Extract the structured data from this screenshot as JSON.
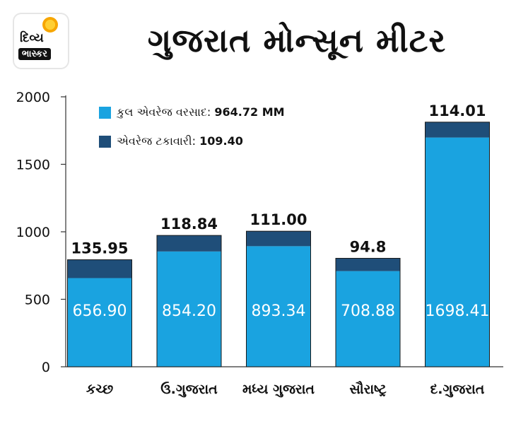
{
  "logo": {
    "line1": "દિવ્ય",
    "line2": "ભાસ્કર"
  },
  "title": "ગુજરાત મોન્સૂન મીટર",
  "chart_data": {
    "type": "bar",
    "stacked": true,
    "categories": [
      "કચ્છ",
      "ઉ.ગુજરાત",
      "મધ્ય ગુજરાત",
      "સૌરાષ્ટ્ર",
      "દ.ગુજરાત"
    ],
    "ylim": [
      0,
      2000
    ],
    "yticks": [
      "0",
      "500",
      "1000",
      "1500",
      "2000"
    ],
    "series": [
      {
        "name": "કુલ એવરેજ વરસાદ:",
        "legend_value": "964.72 MM",
        "color": "#1aa3e0",
        "values": [
          656.9,
          854.2,
          893.34,
          708.88,
          1698.41
        ],
        "labels": [
          "656.90",
          "854.20",
          "893.34",
          "708.88",
          "1698.41"
        ]
      },
      {
        "name": "એવરેજ ટકાવારી:",
        "legend_value": "109.40",
        "color": "#1f4e79",
        "values": [
          135.95,
          118.84,
          111.0,
          94.8,
          114.01
        ],
        "labels": [
          "135.95",
          "118.84",
          "111.00",
          "94.8",
          "114.01"
        ]
      }
    ],
    "legend_position": "top-left",
    "grid": false
  }
}
